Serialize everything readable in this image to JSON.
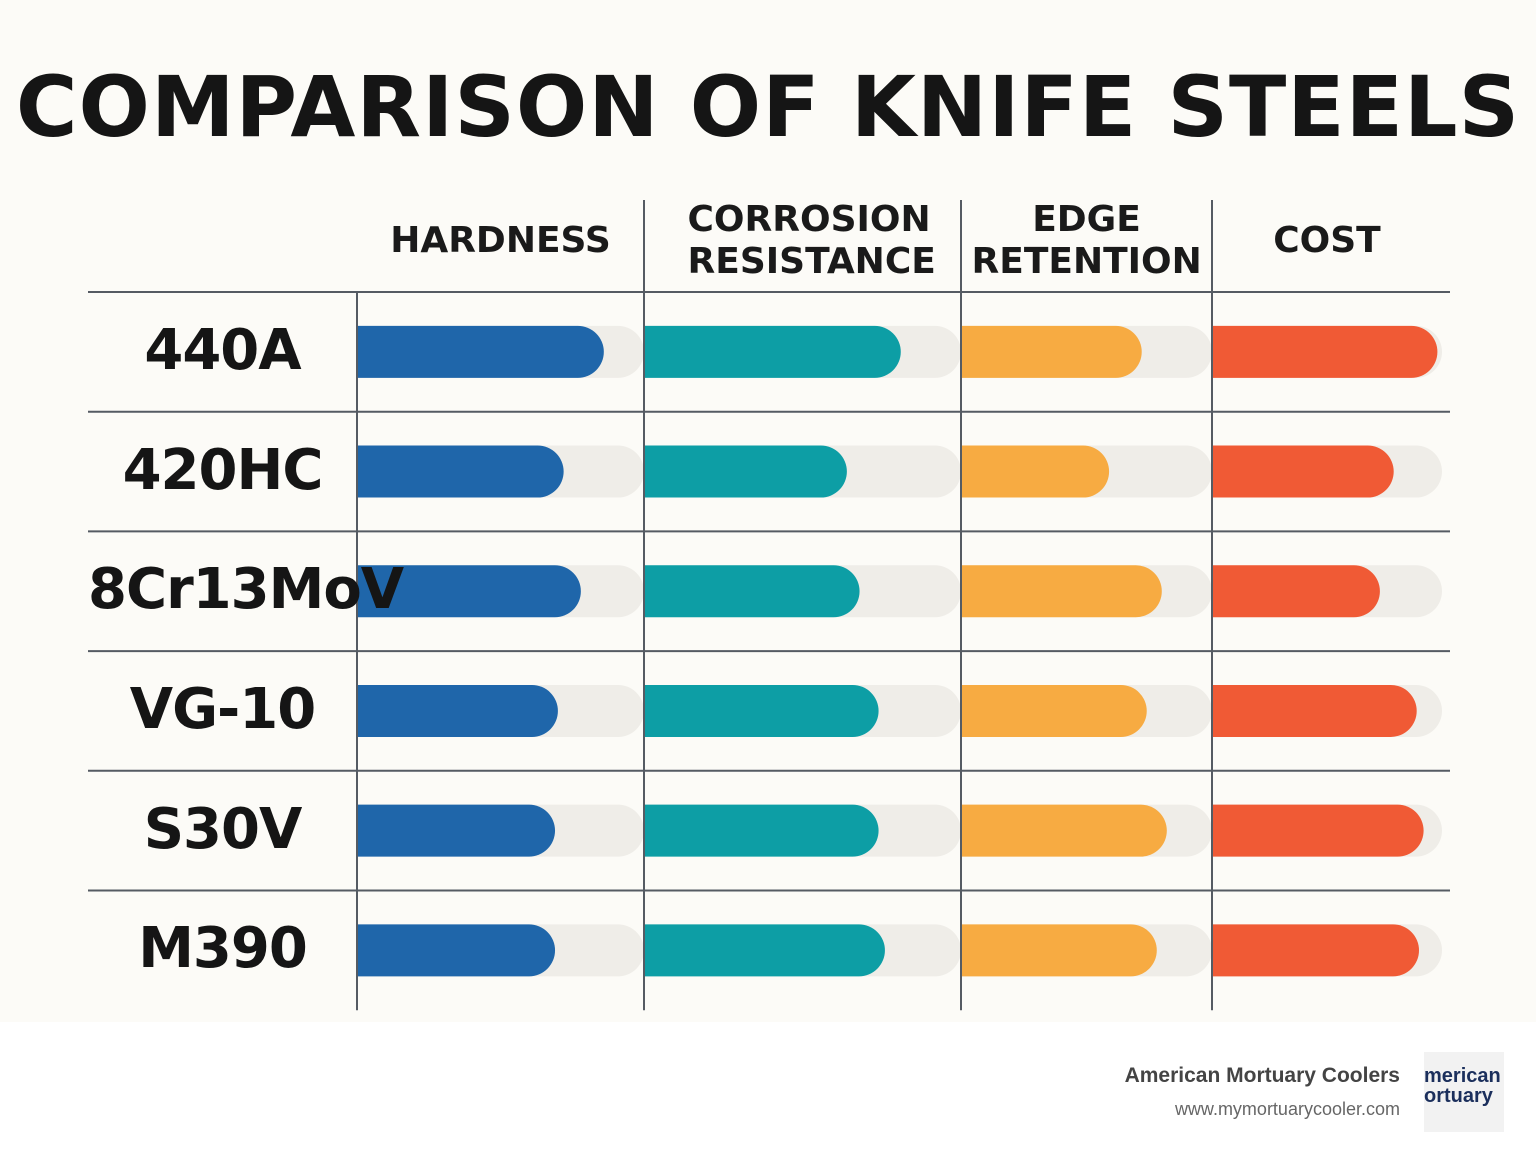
{
  "chart_data": {
    "type": "bar",
    "orientation": "horizontal",
    "title": "COMPARISON OF KNIFE STEELS",
    "categories": [
      "440A",
      "420HC",
      "8Cr13MoV",
      "VG-10",
      "S30V",
      "M390"
    ],
    "xlim": [
      0,
      100
    ],
    "series": [
      {
        "name": "HARDNESS",
        "color": "#1f66aa",
        "values": [
          86,
          72,
          78,
          70,
          69,
          69
        ]
      },
      {
        "name": "CORROSION RESISTANCE",
        "color": "#0d9ea5",
        "values": [
          81,
          64,
          68,
          74,
          74,
          76
        ]
      },
      {
        "name": "EDGE RETENTION",
        "color": "#f7ab42",
        "values": [
          72,
          59,
          80,
          74,
          82,
          78
        ]
      },
      {
        "name": "COST",
        "color": "#f05a35",
        "values": [
          98,
          79,
          73,
          89,
          92,
          90
        ]
      }
    ]
  },
  "footer": {
    "brand": "American Mortuary Coolers",
    "url": "www.mymortuarycooler.com",
    "logo_line1": "merican",
    "logo_line2": "ortuary"
  }
}
